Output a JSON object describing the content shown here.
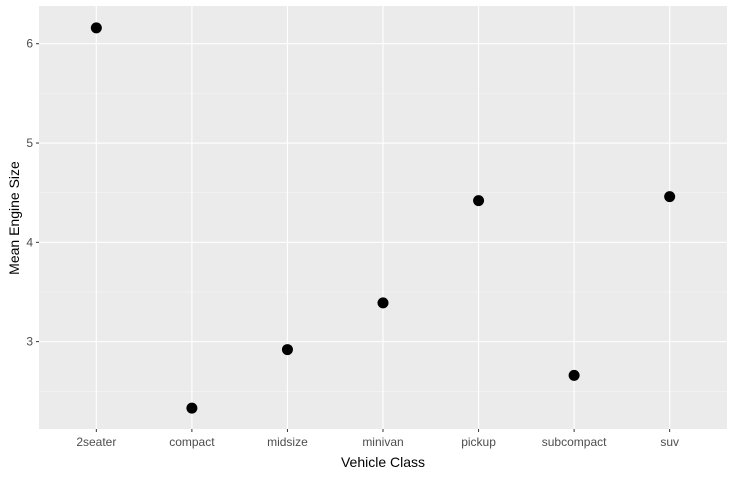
{
  "chart_data": {
    "type": "scatter",
    "title": "",
    "xlabel": "Vehicle Class",
    "ylabel": "Mean Engine Size",
    "categories": [
      "2seater",
      "compact",
      "midsize",
      "minivan",
      "pickup",
      "subcompact",
      "suv"
    ],
    "values": [
      6.16,
      2.33,
      2.92,
      3.39,
      4.42,
      2.66,
      4.46
    ],
    "ylim": [
      2.12,
      6.38
    ],
    "yticks": [
      3,
      4,
      5,
      6
    ],
    "grid": true,
    "legend": "none",
    "colors": {
      "panel": "#ebebeb",
      "grid_major": "#ffffff",
      "grid_minor": "#f5f5f5",
      "point": "#000000",
      "tick": "#333333"
    }
  }
}
